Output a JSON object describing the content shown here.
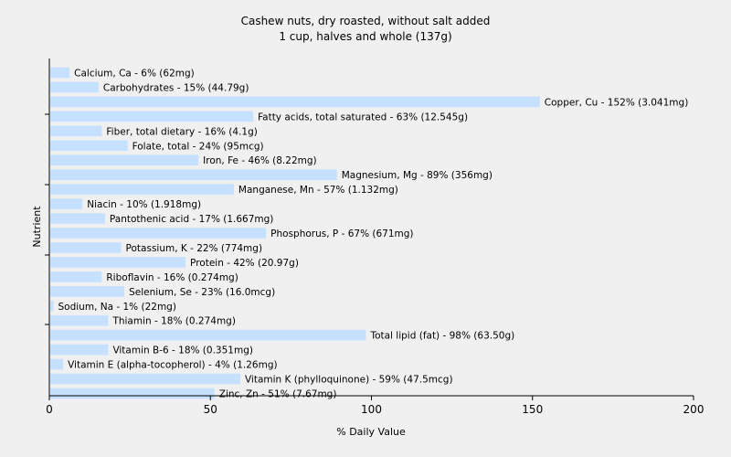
{
  "chart_data": {
    "type": "bar",
    "orientation": "horizontal",
    "title": "Cashew nuts, dry roasted, without salt added",
    "subtitle": "1 cup, halves and whole (137g)",
    "xlabel": "% Daily Value",
    "ylabel": "Nutrient",
    "xlim": [
      0,
      200
    ],
    "xticks": [
      "0",
      "50",
      "100",
      "150",
      "200"
    ],
    "grid": false,
    "bar_color": "#c6e0ff",
    "background_color": "#f0f0f0",
    "categories": [
      "Calcium, Ca",
      "Carbohydrates",
      "Copper, Cu",
      "Fatty acids, total saturated",
      "Fiber, total dietary",
      "Folate, total",
      "Iron, Fe",
      "Magnesium, Mg",
      "Manganese, Mn",
      "Niacin",
      "Pantothenic acid",
      "Phosphorus, P",
      "Potassium, K",
      "Protein",
      "Riboflavin",
      "Selenium, Se",
      "Sodium, Na",
      "Thiamin",
      "Total lipid (fat)",
      "Vitamin B-6",
      "Vitamin E (alpha-tocopherol)",
      "Vitamin K (phylloquinone)",
      "Zinc, Zn"
    ],
    "values": [
      6,
      15,
      152,
      63,
      16,
      24,
      46,
      89,
      57,
      10,
      17,
      67,
      22,
      42,
      16,
      23,
      1,
      18,
      98,
      18,
      4,
      59,
      51
    ],
    "labels": [
      "Calcium, Ca - 6% (62mg)",
      "Carbohydrates - 15% (44.79g)",
      "Copper, Cu - 152% (3.041mg)",
      "Fatty acids, total saturated - 63% (12.545g)",
      "Fiber, total dietary - 16% (4.1g)",
      "Folate, total - 24% (95mcg)",
      "Iron, Fe - 46% (8.22mg)",
      "Magnesium, Mg - 89% (356mg)",
      "Manganese, Mn - 57% (1.132mg)",
      "Niacin - 10% (1.918mg)",
      "Pantothenic acid - 17% (1.667mg)",
      "Phosphorus, P - 67% (671mg)",
      "Potassium, K - 22% (774mg)",
      "Protein - 42% (20.97g)",
      "Riboflavin - 16% (0.274mg)",
      "Selenium, Se - 23% (16.0mcg)",
      "Sodium, Na - 1% (22mg)",
      "Thiamin - 18% (0.274mg)",
      "Total lipid (fat) - 98% (63.50g)",
      "Vitamin B-6 - 18% (0.351mg)",
      "Vitamin E (alpha-tocopherol) - 4% (1.26mg)",
      "Vitamin K (phylloquinone) - 59% (47.5mcg)",
      "Zinc, Zn - 51% (7.67mg)"
    ]
  }
}
